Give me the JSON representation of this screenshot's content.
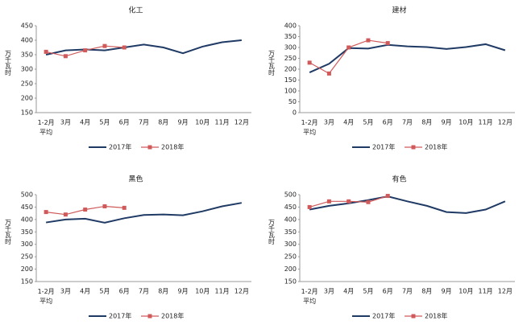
{
  "chart_data": [
    {
      "type": "line",
      "title": "化工",
      "ylabel": "万千瓦时",
      "categories": [
        "1-2月\n平均",
        "3月",
        "4月",
        "5月",
        "6月",
        "7月",
        "8月",
        "9月",
        "10月",
        "11月",
        "12月"
      ],
      "ylim": [
        150,
        450
      ],
      "yticks": [
        150,
        200,
        250,
        300,
        350,
        400,
        450
      ],
      "series": [
        {
          "name": "2017年",
          "color": "#1f3a64",
          "values": [
            350,
            365,
            368,
            365,
            375,
            385,
            375,
            355,
            378,
            393,
            400
          ]
        },
        {
          "name": "2018年",
          "color": "#d05a5a",
          "values": [
            360,
            345,
            365,
            380,
            375,
            null,
            null,
            null,
            null,
            null,
            null
          ]
        }
      ]
    },
    {
      "type": "line",
      "title": "建材",
      "ylabel": "万千瓦时",
      "categories": [
        "1-2月\n平均",
        "3月",
        "4月",
        "5月",
        "6月",
        "7月",
        "8月",
        "9月",
        "10月",
        "11月",
        "12月"
      ],
      "ylim": [
        0,
        400
      ],
      "yticks": [
        0,
        50,
        100,
        150,
        200,
        250,
        300,
        350,
        400
      ],
      "series": [
        {
          "name": "2017年",
          "color": "#1f3a64",
          "values": [
            185,
            225,
            297,
            295,
            312,
            305,
            302,
            293,
            302,
            315,
            287
          ]
        },
        {
          "name": "2018年",
          "color": "#d05a5a",
          "values": [
            230,
            180,
            300,
            333,
            320,
            null,
            null,
            null,
            null,
            null,
            null
          ]
        }
      ]
    },
    {
      "type": "line",
      "title": "黑色",
      "ylabel": "万千瓦时",
      "categories": [
        "1-2月\n平均",
        "3月",
        "4月",
        "5月",
        "6月",
        "7月",
        "8月",
        "9月",
        "10月",
        "11月",
        "12月"
      ],
      "ylim": [
        150,
        500
      ],
      "yticks": [
        150,
        200,
        250,
        300,
        350,
        400,
        450,
        500
      ],
      "series": [
        {
          "name": "2017年",
          "color": "#1f3a64",
          "values": [
            388,
            400,
            403,
            387,
            405,
            418,
            420,
            417,
            433,
            453,
            467
          ]
        },
        {
          "name": "2018年",
          "color": "#d05a5a",
          "values": [
            430,
            420,
            440,
            453,
            447,
            null,
            null,
            null,
            null,
            null,
            null
          ]
        }
      ]
    },
    {
      "type": "line",
      "title": "有色",
      "ylabel": "万千瓦时",
      "categories": [
        "1-2月\n平均",
        "3月",
        "4月",
        "5月",
        "6月",
        "7月",
        "8月",
        "9月",
        "10月",
        "11月",
        "12月"
      ],
      "ylim": [
        150,
        500
      ],
      "yticks": [
        150,
        200,
        250,
        300,
        350,
        400,
        450,
        500
      ],
      "series": [
        {
          "name": "2017年",
          "color": "#1f3a64",
          "values": [
            440,
            455,
            465,
            478,
            493,
            473,
            455,
            430,
            426,
            440,
            473
          ]
        },
        {
          "name": "2018年",
          "color": "#d05a5a",
          "values": [
            450,
            473,
            473,
            470,
            495,
            null,
            null,
            null,
            null,
            null,
            null
          ]
        }
      ]
    }
  ]
}
